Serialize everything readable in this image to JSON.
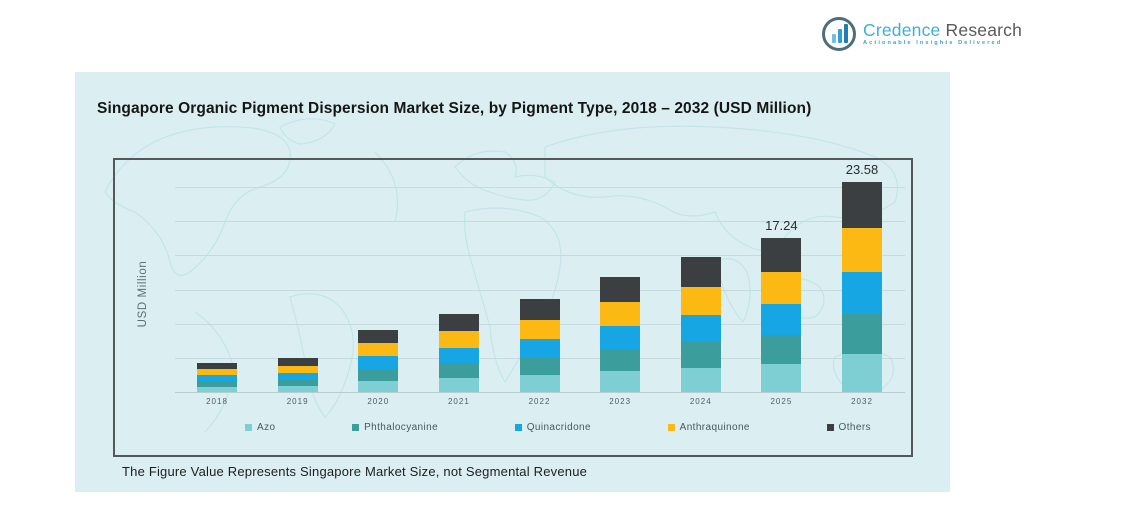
{
  "logo": {
    "name_part1": "Credence",
    "name_part2": "Research",
    "tagline": "Actionable Insights Delivered"
  },
  "card": {
    "title": "Singapore Organic Pigment Dispersion Market Size, by Pigment Type, 2018 – 2032 (USD Million)",
    "footnote": "The Figure Value Represents Singapore Market Size, not Segmental Revenue"
  },
  "chart_data": {
    "type": "bar",
    "stacked": true,
    "title": "Singapore Organic Pigment Dispersion Market Size, by Pigment Type, 2018 – 2032 (USD Million)",
    "xlabel": "",
    "ylabel": "USD Million",
    "categories": [
      "2018",
      "2019",
      "2020",
      "2021",
      "2022",
      "2023",
      "2024",
      "2025",
      "2032"
    ],
    "series": [
      {
        "name": "Azo",
        "color": "#7ECFD4",
        "values": [
          0.59,
          0.68,
          1.26,
          1.57,
          1.87,
          2.32,
          2.72,
          3.1,
          4.24
        ]
      },
      {
        "name": "Phthalocyanine",
        "color": "#3B9E9C",
        "values": [
          0.63,
          0.72,
          1.33,
          1.65,
          1.98,
          2.45,
          2.87,
          3.28,
          4.48
        ]
      },
      {
        "name": "Quinacridone",
        "color": "#15A6E3",
        "values": [
          0.66,
          0.76,
          1.4,
          1.74,
          2.08,
          2.58,
          3.02,
          3.45,
          4.72
        ]
      },
      {
        "name": "Anthraquinone",
        "color": "#FDB913",
        "values": [
          0.69,
          0.8,
          1.47,
          1.83,
          2.18,
          2.71,
          3.17,
          3.62,
          4.95
        ]
      },
      {
        "name": "Others",
        "color": "#3B3F42",
        "values": [
          0.73,
          0.84,
          1.54,
          1.91,
          2.29,
          2.84,
          3.32,
          3.79,
          5.19
        ]
      }
    ],
    "totals": [
      3.3,
      3.8,
      7.0,
      8.7,
      10.4,
      12.9,
      15.1,
      17.24,
      23.58
    ],
    "bar_labels": [
      "",
      "",
      "",
      "",
      "",
      "",
      "",
      "17.24",
      "23.58"
    ],
    "ylim": [
      0,
      26
    ],
    "grid": true,
    "gridline_count": 7,
    "legend_position": "bottom"
  }
}
